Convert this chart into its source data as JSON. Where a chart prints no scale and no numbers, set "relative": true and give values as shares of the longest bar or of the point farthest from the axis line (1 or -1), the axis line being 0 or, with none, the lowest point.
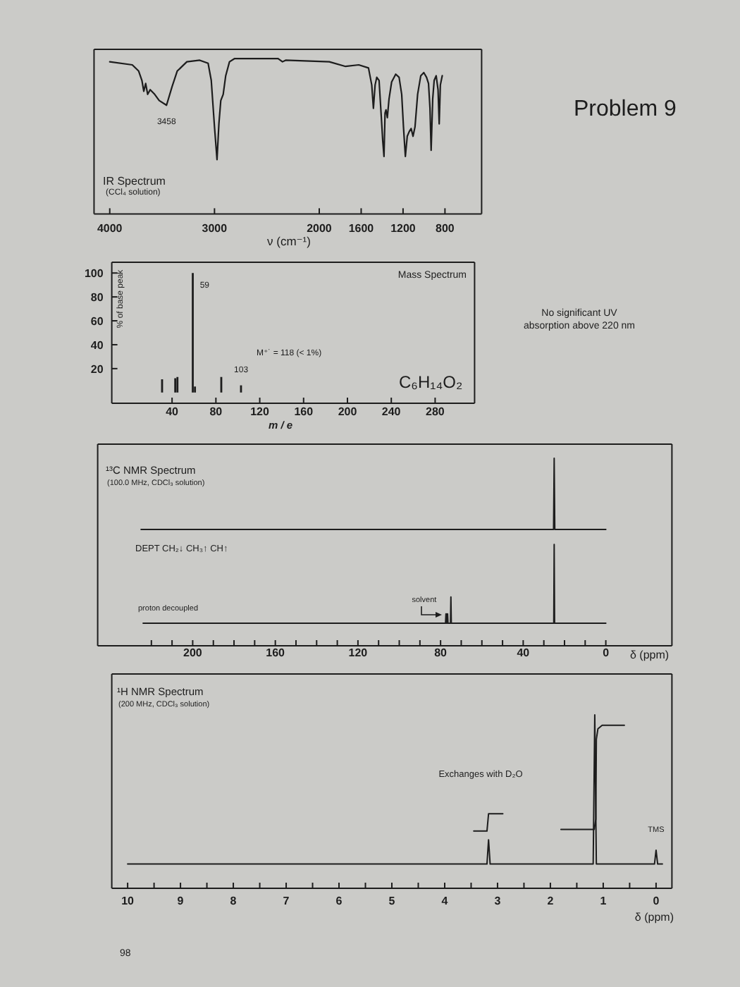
{
  "chart_data": [
    {
      "type": "line",
      "title": "IR Spectrum",
      "subtitle": "(CCl₄ solution)",
      "xlabel": "ν (cm⁻¹)",
      "relative": true,
      "color": "#1d1d1d",
      "x": [
        4000,
        3785,
        3724,
        3693,
        3675,
        3657,
        3638,
        3614,
        3571,
        3528,
        3458,
        3405,
        3356,
        3264,
        3141,
        3061,
        3031,
        3000,
        2976,
        2958,
        2940,
        2917,
        2893,
        2857,
        2810,
        2393,
        2351,
        2321,
        1904,
        1749,
        1623,
        1530,
        1499,
        1483,
        1467,
        1451,
        1429,
        1410,
        1394,
        1382,
        1372,
        1363,
        1350,
        1334,
        1309,
        1270,
        1238,
        1213,
        1196,
        1178,
        1160,
        1141,
        1123,
        1105,
        1086,
        1061,
        1031,
        1002,
        976,
        957,
        943,
        932,
        917,
        903,
        884,
        866,
        855,
        844,
        826
      ],
      "values": [
        0.98,
        0.96,
        0.92,
        0.86,
        0.79,
        0.84,
        0.77,
        0.8,
        0.77,
        0.73,
        0.7,
        0.82,
        0.92,
        0.98,
        0.99,
        0.97,
        0.86,
        0.56,
        0.35,
        0.58,
        0.73,
        0.77,
        0.89,
        0.98,
        1.0,
        1.0,
        0.98,
        0.99,
        0.98,
        0.95,
        0.96,
        0.94,
        0.83,
        0.68,
        0.83,
        0.88,
        0.86,
        0.65,
        0.47,
        0.37,
        0.65,
        0.67,
        0.62,
        0.74,
        0.85,
        0.9,
        0.88,
        0.77,
        0.56,
        0.37,
        0.5,
        0.53,
        0.55,
        0.5,
        0.56,
        0.77,
        0.89,
        0.91,
        0.88,
        0.84,
        0.68,
        0.41,
        0.74,
        0.86,
        0.89,
        0.8,
        0.58,
        0.83,
        0.89
      ],
      "xlim": [
        4150,
        450
      ],
      "xticks": [
        4000,
        3000,
        2000,
        1600,
        1200,
        800
      ],
      "annotations": [
        {
          "text": "3458",
          "x": 3458,
          "y": 0.7
        },
        "Problem 9",
        "98"
      ]
    },
    {
      "type": "bar",
      "title": "Mass Spectrum",
      "xlabel": "m / e",
      "ylabel": "% of base peak",
      "color": "#1d1d1d",
      "x": [
        31,
        43,
        45,
        59,
        61,
        85,
        103
      ],
      "values": [
        11,
        12,
        13,
        100,
        5,
        13,
        6
      ],
      "xlim": [
        -15,
        316
      ],
      "ylim": [
        -9,
        109
      ],
      "xticks": [
        40,
        80,
        120,
        160,
        200,
        240,
        280
      ],
      "yticks": [
        20,
        40,
        60,
        80,
        100
      ],
      "annotations": [
        {
          "text": "59",
          "x": 59,
          "y": 100
        },
        {
          "text": "103",
          "x": 103,
          "y": 6
        },
        "M⁺˙ = 118 (< 1%)",
        "C₆H₁₄O₂",
        "No significant UV absorption above 220 nm"
      ]
    },
    {
      "type": "line",
      "title": "¹³C NMR Spectrum",
      "subtitle": "(100.0 MHz, CDCl₃ solution)",
      "xlabel": "δ (ppm)",
      "relative": true,
      "series": [
        {
          "color": "#1d1d1d",
          "x": [
            225,
            25.3,
            25,
            24.7,
            0
          ],
          "values": [
            0.62,
            0.62,
            1,
            0.62,
            0.62
          ]
        },
        {
          "color": "#1d1d1d",
          "x": [
            224,
            77.6,
            77.4,
            77.2,
            77,
            76.8,
            76.6,
            76.4,
            75.2,
            75,
            74.8,
            25.2,
            25,
            24.8,
            0
          ],
          "values": [
            0.12,
            0.12,
            0.17,
            0.12,
            0.17,
            0.12,
            0.17,
            0.12,
            0.12,
            0.26,
            0.12,
            0.12,
            0.54,
            0.12,
            0.12
          ]
        }
      ],
      "xlim": [
        246,
        -32
      ],
      "xticks": [
        {
          "value": 220,
          "label": null
        },
        {
          "value": 210,
          "label": null
        },
        200,
        {
          "value": 190,
          "label": null
        },
        {
          "value": 180,
          "label": null
        },
        {
          "value": 170,
          "label": null
        },
        160,
        {
          "value": 150,
          "label": null
        },
        {
          "value": 140,
          "label": null
        },
        {
          "value": 130,
          "label": null
        },
        120,
        {
          "value": 110,
          "label": null
        },
        {
          "value": 100,
          "label": null
        },
        {
          "value": 90,
          "label": null
        },
        80,
        {
          "value": 70,
          "label": null
        },
        {
          "value": 60,
          "label": null
        },
        {
          "value": 50,
          "label": null
        },
        40,
        {
          "value": 30,
          "label": null
        },
        {
          "value": 20,
          "label": null
        },
        {
          "value": 10,
          "label": null
        },
        0
      ],
      "annotations": [
        "DEPT  CH₂↓  CH₃↑  CH↑",
        {
          "text": "solvent",
          "x": 77,
          "y": 0.17
        },
        "proton decoupled"
      ]
    },
    {
      "type": "line",
      "title": "¹H NMR Spectrum",
      "subtitle": "(200 MHz, CDCl₃ solution)",
      "xlabel": "δ (ppm)",
      "relative": true,
      "series": [
        {
          "color": "#1d1d1d",
          "x": [
            10,
            3.2,
            3.17,
            3.14,
            1.19,
            1.16,
            1.13,
            0.03,
            0,
            -0.03,
            -0.12
          ],
          "values": [
            0.14,
            0.14,
            0.28,
            0.14,
            0.14,
            1,
            0.14,
            0.14,
            0.22,
            0.14,
            0.14
          ]
        },
        {
          "color": "#1d1d1d",
          "x": [
            3.45,
            3.2,
            3.17,
            2.9
          ],
          "values": [
            0.33,
            0.33,
            0.43,
            0.43
          ]
        },
        {
          "color": "#1d1d1d",
          "x": [
            1.8,
            1.17,
            1.14,
            1.13,
            1.1,
            1.02,
            0.6
          ],
          "values": [
            0.34,
            0.34,
            0.4,
            0.86,
            0.92,
            0.94,
            0.94
          ]
        }
      ],
      "xlim": [
        10.3,
        -0.3
      ],
      "xticks": [
        10,
        {
          "value": 9.5,
          "label": null
        },
        9,
        {
          "value": 8.5,
          "label": null
        },
        8,
        {
          "value": 7.5,
          "label": null
        },
        7,
        {
          "value": 6.5,
          "label": null
        },
        6,
        {
          "value": 5.5,
          "label": null
        },
        5,
        {
          "value": 4.5,
          "label": null
        },
        4,
        {
          "value": 3.5,
          "label": null
        },
        3,
        {
          "value": 2.5,
          "label": null
        },
        2,
        {
          "value": 1.5,
          "label": null
        },
        1,
        {
          "value": 0.5,
          "label": null
        },
        0
      ],
      "annotations": [
        "Exchanges with D₂O",
        {
          "text": "TMS",
          "x": 0,
          "y": 0.22
        }
      ]
    }
  ]
}
